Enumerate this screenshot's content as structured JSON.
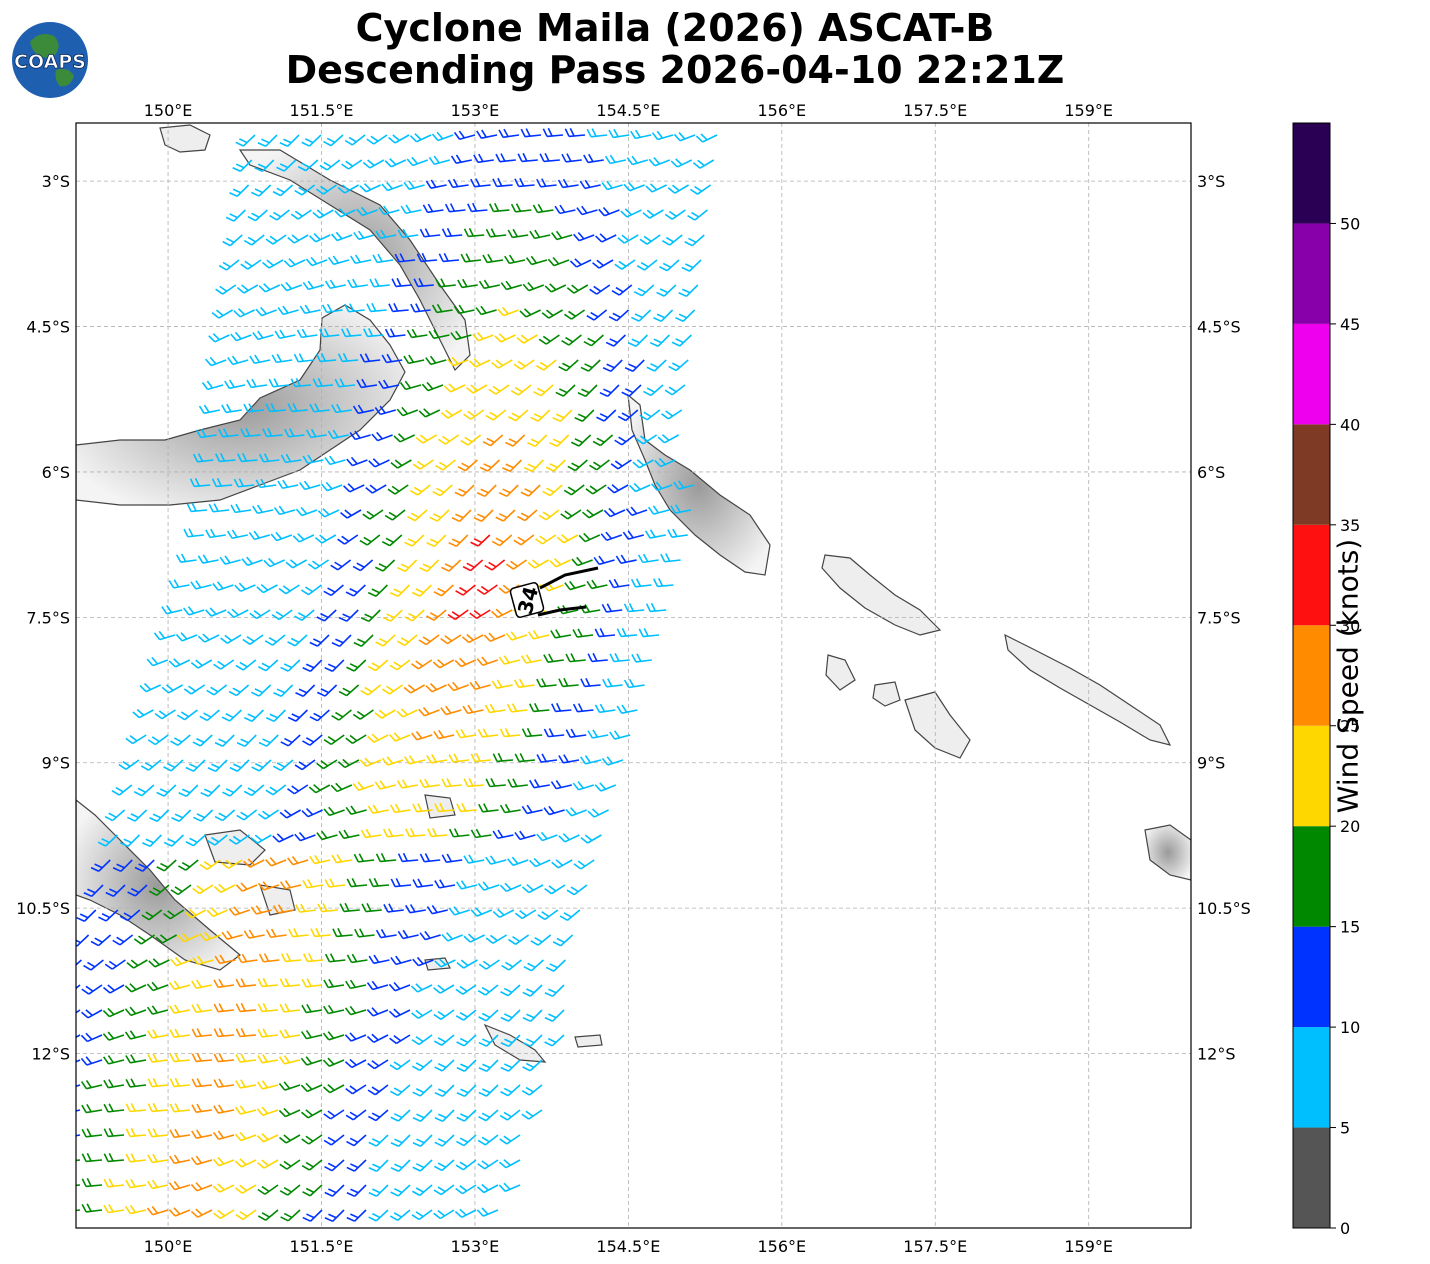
{
  "header": {
    "title_line1": "Cyclone Maila (2026) ASCAT-B",
    "title_line2": "Descending Pass 2026-04-10 22:21Z",
    "logo_text": "COAPS"
  },
  "map": {
    "lon_range": [
      149.1,
      160.0
    ],
    "lat_range": [
      -13.8,
      -2.4
    ],
    "lon_ticks": [
      {
        "value": 150.0,
        "label": "150°E"
      },
      {
        "value": 151.5,
        "label": "151.5°E"
      },
      {
        "value": 153.0,
        "label": "153°E"
      },
      {
        "value": 154.5,
        "label": "154.5°E"
      },
      {
        "value": 156.0,
        "label": "156°E"
      },
      {
        "value": 157.5,
        "label": "157.5°E"
      },
      {
        "value": 159.0,
        "label": "159°E"
      }
    ],
    "lat_ticks": [
      {
        "value": -3.0,
        "label": "3°S"
      },
      {
        "value": -4.5,
        "label": "4.5°S"
      },
      {
        "value": -6.0,
        "label": "6°S"
      },
      {
        "value": -7.5,
        "label": "7.5°S"
      },
      {
        "value": -9.0,
        "label": "9°S"
      },
      {
        "value": -10.5,
        "label": "10.5°S"
      },
      {
        "value": -12.0,
        "label": "12°S"
      }
    ],
    "gridlines": true,
    "wind_radius_label": "34"
  },
  "colorbar": {
    "label": "Wind Speed (knots)",
    "ticks": [
      "0",
      "5",
      "10",
      "15",
      "20",
      "25",
      "30",
      "35",
      "40",
      "45",
      "50"
    ],
    "bins": [
      {
        "color": "#555555"
      },
      {
        "color": "#00bfff"
      },
      {
        "color": "#0033ff"
      },
      {
        "color": "#008800"
      },
      {
        "color": "#ffd700"
      },
      {
        "color": "#ff8c00"
      },
      {
        "color": "#ff1010"
      },
      {
        "color": "#7f3a26"
      },
      {
        "color": "#ee00ee"
      },
      {
        "color": "#8800aa"
      },
      {
        "color": "#2a0055"
      }
    ]
  }
}
